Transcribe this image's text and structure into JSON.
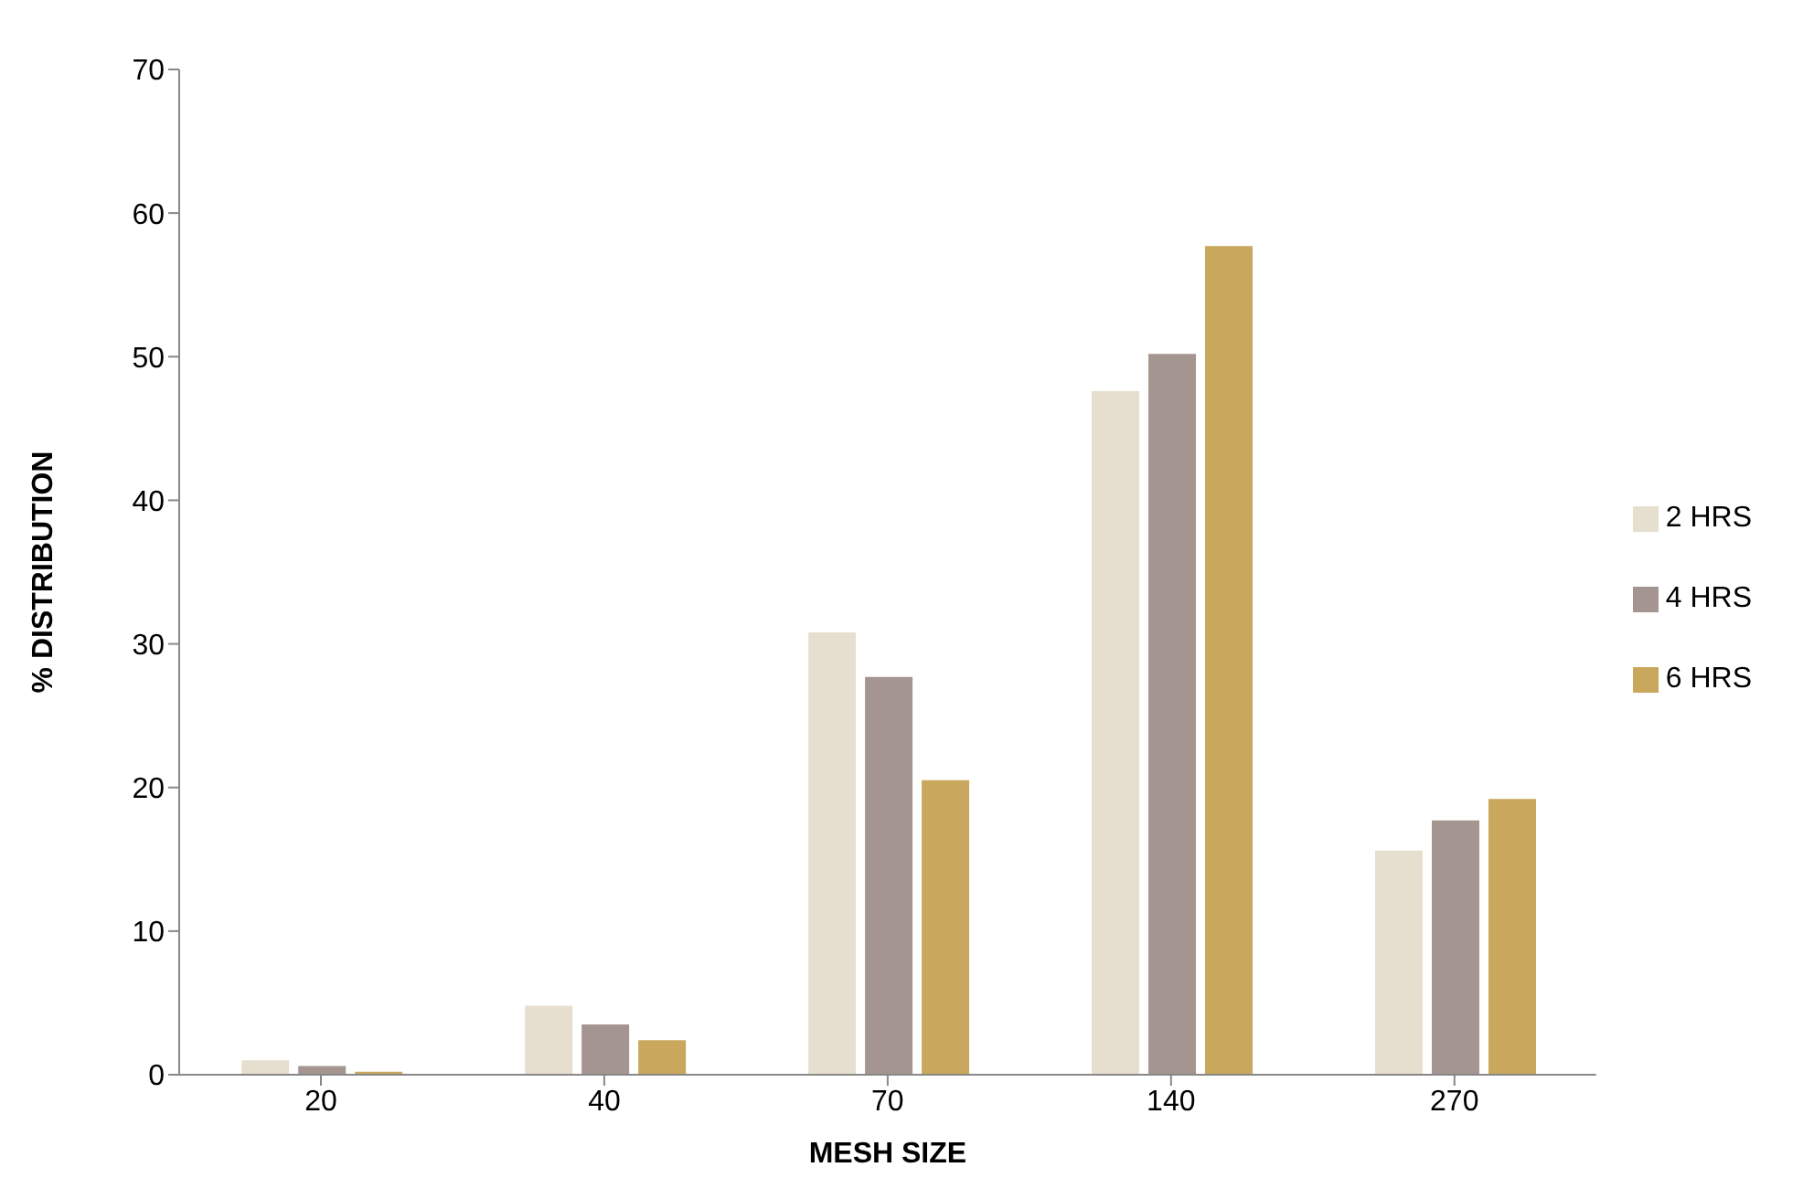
{
  "chart_data": {
    "type": "bar",
    "xlabel": "MESH SIZE",
    "ylabel": "% DISTRIBUTION",
    "categories": [
      "20",
      "40",
      "70",
      "140",
      "270"
    ],
    "series": [
      {
        "name": "2 HRS",
        "color": "#e6dfcf",
        "values": [
          1.0,
          4.8,
          30.8,
          47.6,
          15.6
        ]
      },
      {
        "name": "4 HRS",
        "color": "#a49590",
        "values": [
          0.6,
          3.5,
          27.7,
          50.2,
          17.7
        ]
      },
      {
        "name": "6 HRS",
        "color": "#c9a75c",
        "values": [
          0.2,
          2.4,
          20.5,
          57.7,
          19.2
        ]
      }
    ],
    "ylim": [
      0,
      70
    ],
    "yticks": [
      0,
      10,
      20,
      30,
      40,
      50,
      60,
      70
    ],
    "grid": false,
    "legend": "right"
  }
}
